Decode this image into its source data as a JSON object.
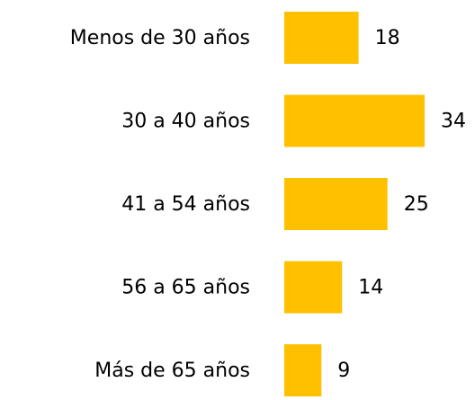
{
  "chart_data": {
    "type": "bar",
    "orientation": "horizontal",
    "categories": [
      "Menos de 30 años",
      "30 a 40 años",
      "41 a 54 años",
      "56 a 65 años",
      "Más de 65 años"
    ],
    "values": [
      18,
      34,
      25,
      14,
      9
    ],
    "color": "#FFC000"
  }
}
